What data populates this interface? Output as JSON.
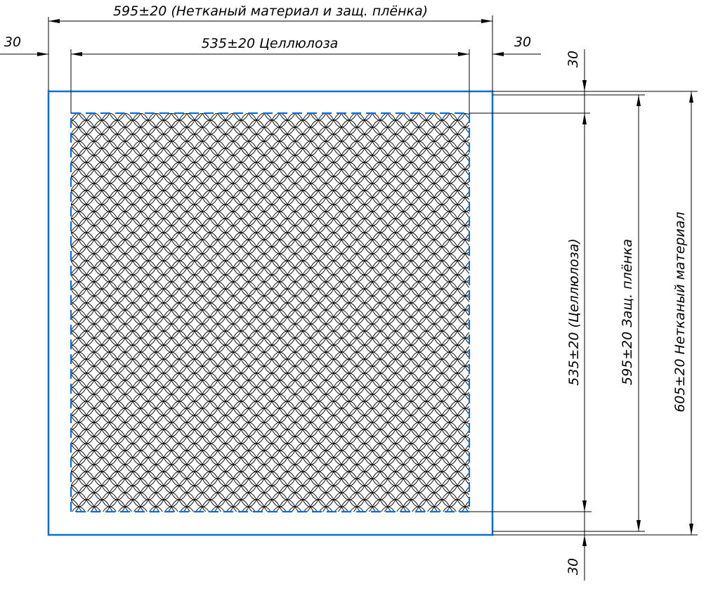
{
  "colors": {
    "outline": "#0a6fd6",
    "cellulose_edge": "#0a6fd6",
    "pattern": "#000000",
    "dimension": "#000000",
    "background": "#ffffff"
  },
  "dimensions": {
    "top_total": "595±20 (Нетканый материал и защ. плёнка)",
    "top_cellulose": "535±20 Целлюлоза",
    "top_left_offset": "30",
    "top_right_offset": "30",
    "right_top_offset": "30",
    "right_bottom_offset": "30",
    "right_cellulose": "535±20 (Целлюлоза)",
    "right_film": "595±20 Защ. плёнка",
    "right_nonwoven": "605±20 Нетканый материал"
  }
}
